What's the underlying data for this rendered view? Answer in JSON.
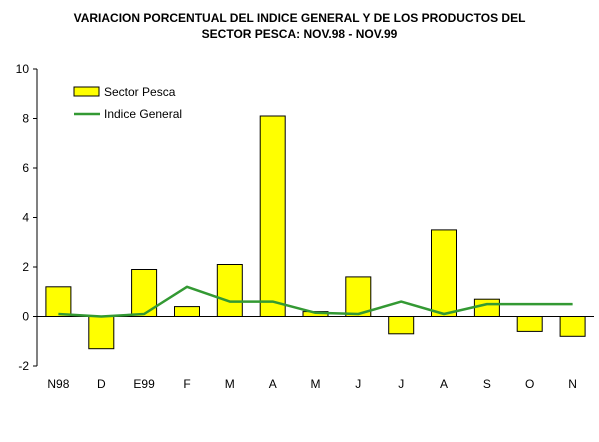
{
  "chart_data": {
    "type": "bar",
    "title_lines": [
      "VARIACION PORCENTUAL DEL INDICE GENERAL Y DE LOS PRODUCTOS DEL",
      "SECTOR PESCA: NOV.98 - NOV.99"
    ],
    "categories": [
      "N98",
      "D",
      "E99",
      "F",
      "M",
      "A",
      "M",
      "J",
      "J",
      "A",
      "S",
      "O",
      "N"
    ],
    "series": [
      {
        "name": "Sector Pesca",
        "type": "bar",
        "color": "#ffff00",
        "values": [
          1.2,
          -1.3,
          1.9,
          0.4,
          2.1,
          8.1,
          0.2,
          1.6,
          -0.7,
          3.5,
          0.7,
          -0.6,
          -0.8
        ]
      },
      {
        "name": "Indice General",
        "type": "line",
        "color": "#339933",
        "values": [
          0.1,
          0.0,
          0.1,
          1.2,
          0.6,
          0.6,
          0.15,
          0.1,
          0.6,
          0.1,
          0.5,
          0.5,
          0.5
        ]
      }
    ],
    "ylim": [
      -2,
      10
    ],
    "yticks": [
      -2,
      0,
      2,
      4,
      6,
      8,
      10
    ],
    "grid": false,
    "legend_position": "top-left"
  }
}
